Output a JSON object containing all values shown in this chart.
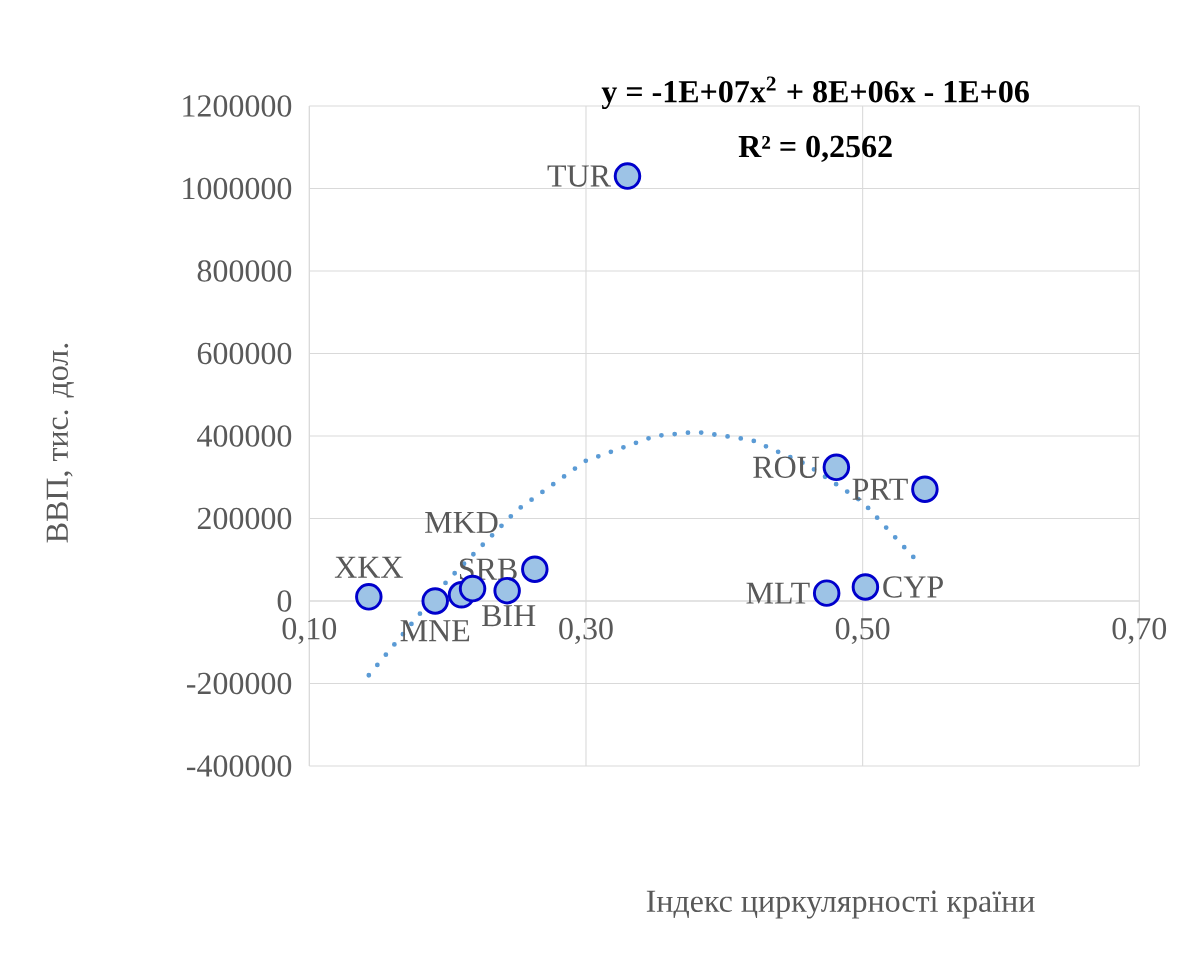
{
  "chart_data": {
    "type": "scatter",
    "xlabel": "Індекс  циркулярності країни",
    "ylabel": "ВВП, тис. дол.",
    "xlim": [
      0.1,
      0.7
    ],
    "ylim": [
      -400000,
      1200000
    ],
    "xticks": [
      {
        "value": 0.1,
        "label": "0,10"
      },
      {
        "value": 0.3,
        "label": "0,30"
      },
      {
        "value": 0.5,
        "label": "0,50"
      },
      {
        "value": 0.7,
        "label": "0,70"
      }
    ],
    "yticks": [
      -400000,
      -200000,
      0,
      200000,
      400000,
      600000,
      800000,
      1000000,
      1200000
    ],
    "grid": true,
    "series": [
      {
        "color": "#9dc3e6",
        "marker": "circle",
        "x": [
          0.33,
          0.143,
          0.191,
          0.21,
          0.218,
          0.243,
          0.263,
          0.481,
          0.545,
          0.474,
          0.502
        ],
        "values": [
          1030000,
          10000,
          0,
          15000,
          30000,
          25000,
          77000,
          324000,
          271000,
          19000,
          34000
        ]
      },
      {
        "type": "line",
        "color": "#5b9bd5",
        "line_style": "dotted",
        "marker": "none",
        "x": [
          0.143,
          0.2,
          0.25,
          0.3,
          0.35,
          0.38,
          0.42,
          0.46,
          0.5,
          0.542
        ],
        "values": [
          -180000,
          50000,
          220000,
          340000,
          400000,
          410000,
          390000,
          330000,
          240000,
          87000
        ]
      }
    ],
    "annotations": [
      "y = -1E+07x$^{2}$ + 8E+06x - 1E+06",
      "R² = 0,2562",
      {
        "text": "TUR",
        "x": 0.33,
        "y": 1030000
      },
      {
        "text": "XKX",
        "x": 0.143,
        "y": 10000
      },
      {
        "text": "MNE",
        "x": 0.191,
        "y": 0
      },
      {
        "text": "MKD",
        "x": 0.21,
        "y": 15000
      },
      {
        "text": "BIH",
        "x": 0.218,
        "y": 30000
      },
      {
        "text": "SRB",
        "x": 0.263,
        "y": 77000
      },
      {
        "text": "ROU",
        "x": 0.481,
        "y": 324000
      },
      {
        "text": "PRT",
        "x": 0.545,
        "y": 271000
      },
      {
        "text": "MLT",
        "x": 0.474,
        "y": 19000
      },
      {
        "text": "CYP",
        "x": 0.502,
        "y": 34000
      }
    ]
  }
}
